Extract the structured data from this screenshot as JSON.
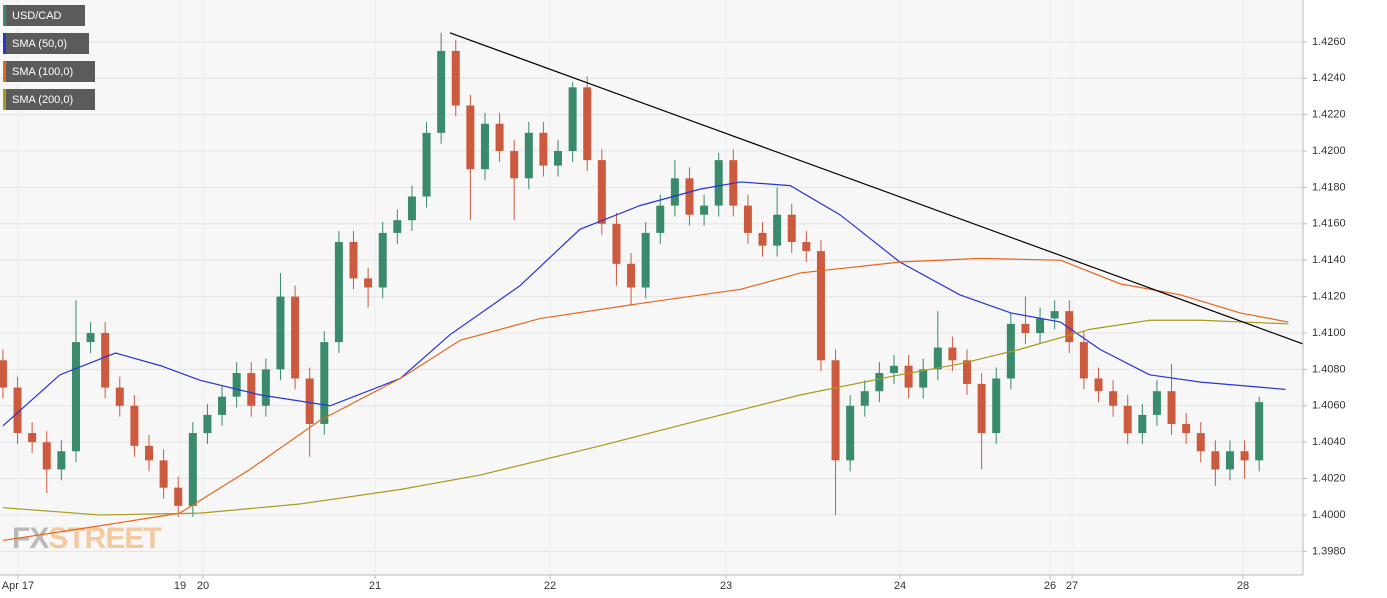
{
  "chart_data": {
    "type": "candlestick",
    "symbol": "USD/CAD",
    "up_color": "#3a8a6c",
    "down_color": "#cc5a3e",
    "x": [
      0,
      1,
      2,
      3,
      4,
      5,
      6,
      7,
      8,
      9,
      10,
      11,
      12,
      13,
      14,
      15,
      16,
      17,
      18,
      19,
      20,
      21,
      22,
      23,
      24,
      25,
      26,
      27,
      28,
      29,
      30,
      31,
      32,
      33,
      34,
      35,
      36,
      37,
      38,
      39,
      40,
      41,
      42,
      43,
      44,
      45,
      46,
      47,
      48,
      49,
      50,
      51,
      52,
      53,
      54,
      55,
      56,
      57,
      58,
      59,
      60,
      61,
      62,
      63,
      64,
      65,
      66,
      67,
      68,
      69,
      70,
      71,
      72,
      73,
      74,
      75,
      76,
      77,
      78,
      79,
      80,
      81,
      82,
      83,
      84,
      85,
      86
    ],
    "open": [
      1.4085,
      1.407,
      1.4045,
      1.404,
      1.4025,
      1.4035,
      1.4095,
      1.41,
      1.407,
      1.406,
      1.4038,
      1.403,
      1.4015,
      1.4005,
      1.4045,
      1.4055,
      1.4065,
      1.4078,
      1.406,
      1.408,
      1.412,
      1.4075,
      1.405,
      1.4095,
      1.415,
      1.413,
      1.4125,
      1.4155,
      1.4162,
      1.4175,
      1.421,
      1.4255,
      1.4225,
      1.419,
      1.4215,
      1.42,
      1.4185,
      1.421,
      1.4192,
      1.42,
      1.4235,
      1.4195,
      1.416,
      1.4138,
      1.4125,
      1.4155,
      1.417,
      1.4185,
      1.4165,
      1.417,
      1.4195,
      1.417,
      1.4155,
      1.4148,
      1.4165,
      1.415,
      1.4145,
      1.4085,
      1.403,
      1.406,
      1.4068,
      1.4078,
      1.4082,
      1.407,
      1.408,
      1.4092,
      1.4085,
      1.4072,
      1.4045,
      1.4075,
      1.4105,
      1.41,
      1.4108,
      1.4112,
      1.4095,
      1.4075,
      1.4068,
      1.406,
      1.4045,
      1.4055,
      1.4068,
      1.405,
      1.4045,
      1.4035,
      1.4025,
      1.4035,
      1.403
    ],
    "high": [
      1.4091,
      1.4076,
      1.4051,
      1.4046,
      1.4041,
      1.4118,
      1.4106,
      1.4106,
      1.4076,
      1.4066,
      1.4044,
      1.4036,
      1.4021,
      1.4051,
      1.4061,
      1.4071,
      1.4084,
      1.4084,
      1.4086,
      1.4133,
      1.4126,
      1.4081,
      1.4101,
      1.4156,
      1.4156,
      1.4136,
      1.4161,
      1.4168,
      1.4181,
      1.4216,
      1.4265,
      1.4261,
      1.4231,
      1.4221,
      1.4221,
      1.4206,
      1.4216,
      1.4216,
      1.4206,
      1.4238,
      1.4241,
      1.4201,
      1.4166,
      1.4144,
      1.4161,
      1.4176,
      1.4195,
      1.4191,
      1.4176,
      1.4199,
      1.4201,
      1.4176,
      1.4161,
      1.418,
      1.4171,
      1.4156,
      1.4151,
      1.4091,
      1.4066,
      1.4074,
      1.4084,
      1.4088,
      1.4088,
      1.4086,
      1.4112,
      1.4098,
      1.4091,
      1.4078,
      1.4081,
      1.4111,
      1.412,
      1.4114,
      1.4118,
      1.4118,
      1.4101,
      1.4081,
      1.4074,
      1.4066,
      1.4061,
      1.4074,
      1.4083,
      1.4056,
      1.4051,
      1.4041,
      1.4041,
      1.4041,
      1.4065
    ],
    "low": [
      1.4064,
      1.4039,
      1.4034,
      1.4012,
      1.4019,
      1.4029,
      1.4089,
      1.4064,
      1.4054,
      1.4032,
      1.4024,
      1.4009,
      1.3999,
      1.3999,
      1.4039,
      1.4049,
      1.4059,
      1.4054,
      1.4054,
      1.4074,
      1.4069,
      1.4032,
      1.4044,
      1.4089,
      1.4124,
      1.4114,
      1.4119,
      1.4149,
      1.4156,
      1.4169,
      1.4204,
      1.4219,
      1.4162,
      1.4184,
      1.4194,
      1.4162,
      1.4179,
      1.4186,
      1.4186,
      1.4194,
      1.4189,
      1.4154,
      1.4126,
      1.4115,
      1.4119,
      1.4149,
      1.4164,
      1.4159,
      1.4159,
      1.4164,
      1.4164,
      1.4149,
      1.4142,
      1.4142,
      1.4144,
      1.4139,
      1.4079,
      1.4,
      1.4024,
      1.4054,
      1.4062,
      1.4072,
      1.4064,
      1.4064,
      1.4074,
      1.4079,
      1.4066,
      1.4025,
      1.4039,
      1.4069,
      1.4094,
      1.4094,
      1.4102,
      1.4089,
      1.4069,
      1.4062,
      1.4054,
      1.4039,
      1.4039,
      1.4049,
      1.4044,
      1.4039,
      1.4029,
      1.4016,
      1.4019,
      1.402,
      1.4024
    ],
    "close": [
      1.407,
      1.4045,
      1.404,
      1.4025,
      1.4035,
      1.4095,
      1.41,
      1.407,
      1.406,
      1.4038,
      1.403,
      1.4015,
      1.4005,
      1.4045,
      1.4055,
      1.4065,
      1.4078,
      1.406,
      1.408,
      1.412,
      1.4075,
      1.405,
      1.4095,
      1.415,
      1.413,
      1.4125,
      1.4155,
      1.4162,
      1.4175,
      1.421,
      1.4255,
      1.4225,
      1.419,
      1.4215,
      1.42,
      1.4185,
      1.421,
      1.4192,
      1.42,
      1.4235,
      1.4195,
      1.416,
      1.4138,
      1.4125,
      1.4155,
      1.417,
      1.4185,
      1.4165,
      1.417,
      1.4195,
      1.417,
      1.4155,
      1.4148,
      1.4165,
      1.415,
      1.4145,
      1.4085,
      1.403,
      1.406,
      1.4068,
      1.4078,
      1.4082,
      1.407,
      1.408,
      1.4092,
      1.4085,
      1.4072,
      1.4045,
      1.4075,
      1.4105,
      1.41,
      1.4108,
      1.4112,
      1.4095,
      1.4075,
      1.4068,
      1.406,
      1.4045,
      1.4055,
      1.4068,
      1.405,
      1.4045,
      1.4035,
      1.4025,
      1.4035,
      1.403,
      1.4062
    ],
    "overlays": [
      {
        "name": "SMA (50,0)",
        "color": "#2435d6",
        "x": [
          0,
          3.9,
          7.7,
          10.8,
          13.5,
          17.6,
          22.4,
          27.2,
          30.6,
          35.4,
          39.5,
          43.6,
          47.7,
          50.5,
          53.9,
          57.3,
          61.4,
          65.5,
          69.0,
          72.4,
          75.1,
          78.5,
          82.0,
          87.8
        ],
        "values": [
          1.4049,
          1.4077,
          1.4089,
          1.4082,
          1.4074,
          1.4066,
          1.406,
          1.4075,
          1.4099,
          1.4126,
          1.4157,
          1.417,
          1.4179,
          1.4183,
          1.4181,
          1.4165,
          1.4139,
          1.4121,
          1.4111,
          1.4106,
          1.4091,
          1.4077,
          1.4073,
          1.4069
        ]
      },
      {
        "name": "SMA (100,0)",
        "color": "#e8661c",
        "x": [
          0,
          6.6,
          12.1,
          16.9,
          21.7,
          27.2,
          31.3,
          36.8,
          44.3,
          50.5,
          54.6,
          61.4,
          66.9,
          72.4,
          76.5,
          80.6,
          84.7,
          88.0
        ],
        "values": [
          1.3986,
          1.3994,
          1.4001,
          1.4025,
          1.4052,
          1.4075,
          1.4096,
          1.4108,
          1.4117,
          1.4124,
          1.4133,
          1.4139,
          1.4141,
          1.414,
          1.4127,
          1.4121,
          1.4111,
          1.4106
        ]
      },
      {
        "name": "SMA (200,0)",
        "color": "#a89a1c",
        "x": [
          0,
          6.6,
          13.5,
          20.3,
          27.2,
          32.7,
          40.9,
          47.7,
          54.6,
          61.4,
          65.5,
          69.6,
          74.4,
          78.5,
          82.0,
          88.0
        ],
        "values": [
          1.4004,
          1.4,
          1.4001,
          1.4006,
          1.4014,
          1.4022,
          1.4038,
          1.4052,
          1.4066,
          1.4077,
          1.4083,
          1.4091,
          1.4102,
          1.4107,
          1.4107,
          1.4105
        ]
      }
    ],
    "trendline": {
      "color": "#000000",
      "x": [
        30.6,
        89
      ],
      "values": [
        1.4265,
        1.4094
      ]
    },
    "xlim": [
      -0.2,
      89
    ],
    "ylim": [
      1.3967,
      1.4283
    ],
    "xticks": [
      {
        "value": 1.03,
        "label": "Apr 17"
      },
      {
        "value": 12.12,
        "label": "19"
      },
      {
        "value": 13.7,
        "label": "20"
      },
      {
        "value": 25.47,
        "label": "21"
      },
      {
        "value": 37.45,
        "label": "22"
      },
      {
        "value": 49.5,
        "label": "23"
      },
      {
        "value": 61.41,
        "label": "24"
      },
      {
        "value": 71.68,
        "label": "26"
      },
      {
        "value": 73.19,
        "label": "27"
      },
      {
        "value": 84.89,
        "label": "28"
      }
    ],
    "yticks": [
      {
        "value": 1.398,
        "label": "1.3980"
      },
      {
        "value": 1.4,
        "label": "1.4000"
      },
      {
        "value": 1.402,
        "label": "1.4020"
      },
      {
        "value": 1.404,
        "label": "1.4040"
      },
      {
        "value": 1.406,
        "label": "1.4060"
      },
      {
        "value": 1.408,
        "label": "1.4080"
      },
      {
        "value": 1.41,
        "label": "1.4100"
      },
      {
        "value": 1.412,
        "label": "1.4120"
      },
      {
        "value": 1.414,
        "label": "1.4140"
      },
      {
        "value": 1.416,
        "label": "1.4160"
      },
      {
        "value": 1.418,
        "label": "1.4180"
      },
      {
        "value": 1.42,
        "label": "1.4200"
      },
      {
        "value": 1.422,
        "label": "1.4220"
      },
      {
        "value": 1.424,
        "label": "1.4240"
      },
      {
        "value": 1.426,
        "label": "1.4260"
      }
    ],
    "grid": true,
    "watermark": [
      "FX",
      "STREET"
    ]
  }
}
